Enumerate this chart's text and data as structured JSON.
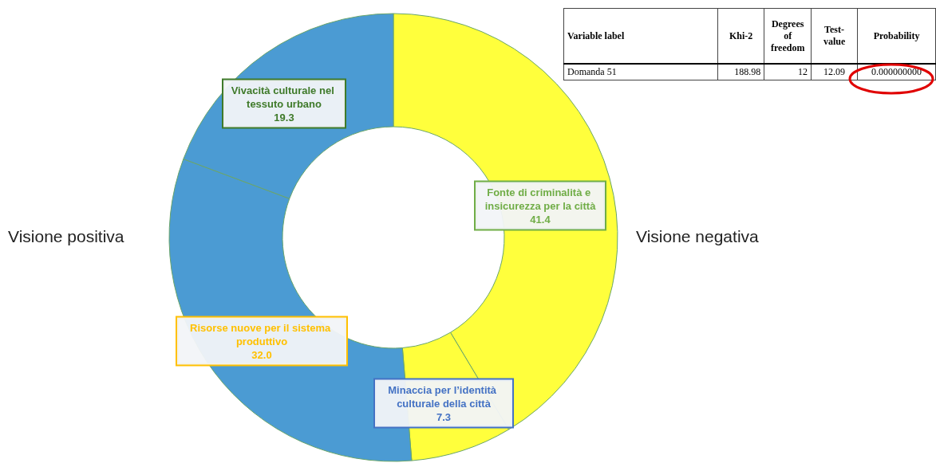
{
  "chart_data": {
    "type": "donut",
    "categories": [
      "Fonte di criminalità e insicurezza per la città",
      "Minaccia per l’identità culturale della città",
      "Risorse nuove per il sistema produttivo",
      "Vivacità culturale nel tessuto urbano"
    ],
    "values": [
      41.4,
      7.3,
      32.0,
      19.3
    ],
    "value_labels": [
      "41.4",
      "7.3",
      "32.0",
      "19.3"
    ],
    "colors": [
      "#ffff3c",
      "#ffff3c",
      "#4b9bd3",
      "#4b9bd3"
    ],
    "legend": false,
    "annotations": [
      "Visione positiva",
      "Visione negativa",
      "Variable label",
      "Khi-2",
      "Degrees of freedom",
      "Test-value",
      "Probability",
      "Domanda 51",
      "188.98",
      "12",
      "12.09",
      "0.000000000"
    ]
  }
}
